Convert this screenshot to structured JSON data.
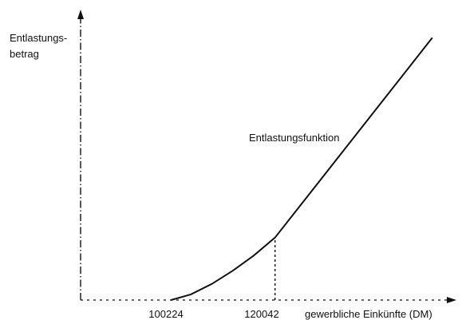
{
  "chart_data": {
    "type": "line",
    "ylabel_line1": "Entlastungs-",
    "ylabel_line2": "betrag",
    "xlabel": "gewerbliche Einkünfte (DM)",
    "annotation": "Entlastungsfunktion",
    "x_ticks": [
      {
        "value": 100224,
        "label": "100224"
      },
      {
        "value": 120042,
        "label": "120042"
      }
    ],
    "marker_x": 120042,
    "series": [
      {
        "points": [
          {
            "x": 100224,
            "y": 0
          },
          {
            "x": 104000,
            "y": 0.6
          },
          {
            "x": 108000,
            "y": 1.7
          },
          {
            "x": 112000,
            "y": 3.1
          },
          {
            "x": 116000,
            "y": 4.7
          },
          {
            "x": 120042,
            "y": 6.6
          },
          {
            "x": 150000,
            "y": 27.7
          }
        ]
      }
    ],
    "xlim": [
      83000,
      152000
    ],
    "ylim": [
      0,
      30
    ],
    "grid": false,
    "legend": "none",
    "colors": {
      "axis": "#111111",
      "line": "#111111"
    }
  }
}
